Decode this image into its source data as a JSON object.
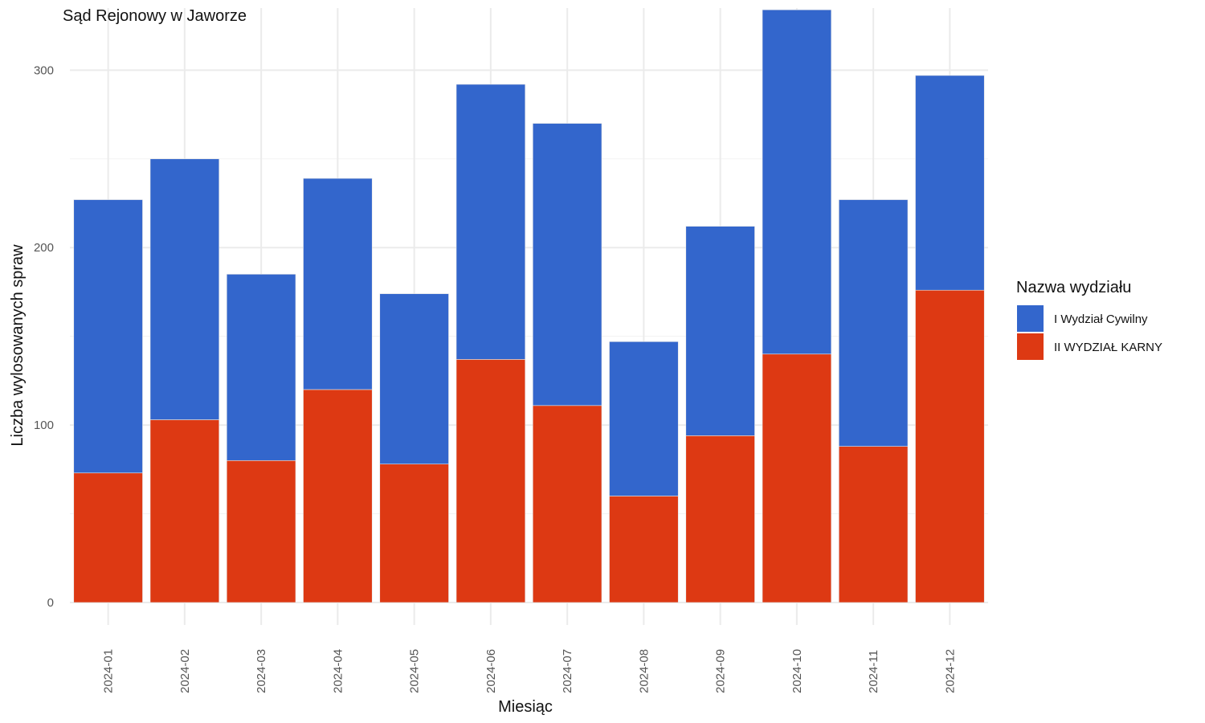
{
  "chart_data": {
    "type": "bar",
    "stacked": true,
    "title": "Sąd Rejonowy w Jaworze",
    "xlabel": "Miesiąc",
    "ylabel": "Liczba wylosowanych spraw",
    "ylim": [
      0,
      335
    ],
    "yticks": [
      0,
      100,
      200,
      300
    ],
    "grid": true,
    "legend_position": "right",
    "legend_title": "Nazwa wydziału",
    "categories": [
      "2024-01",
      "2024-02",
      "2024-03",
      "2024-04",
      "2024-05",
      "2024-06",
      "2024-07",
      "2024-08",
      "2024-09",
      "2024-10",
      "2024-11",
      "2024-12"
    ],
    "series": [
      {
        "name": "II WYDZIAŁ KARNY",
        "color": "#DD3913",
        "values": [
          73,
          103,
          80,
          120,
          78,
          137,
          111,
          60,
          94,
          140,
          88,
          176
        ]
      },
      {
        "name": "I Wydział Cywilny",
        "color": "#3366CC",
        "values": [
          154,
          147,
          105,
          119,
          96,
          155,
          159,
          87,
          118,
          194,
          139,
          121
        ]
      }
    ],
    "legend_order": [
      "I Wydział Cywilny",
      "II WYDZIAŁ KARNY"
    ]
  }
}
